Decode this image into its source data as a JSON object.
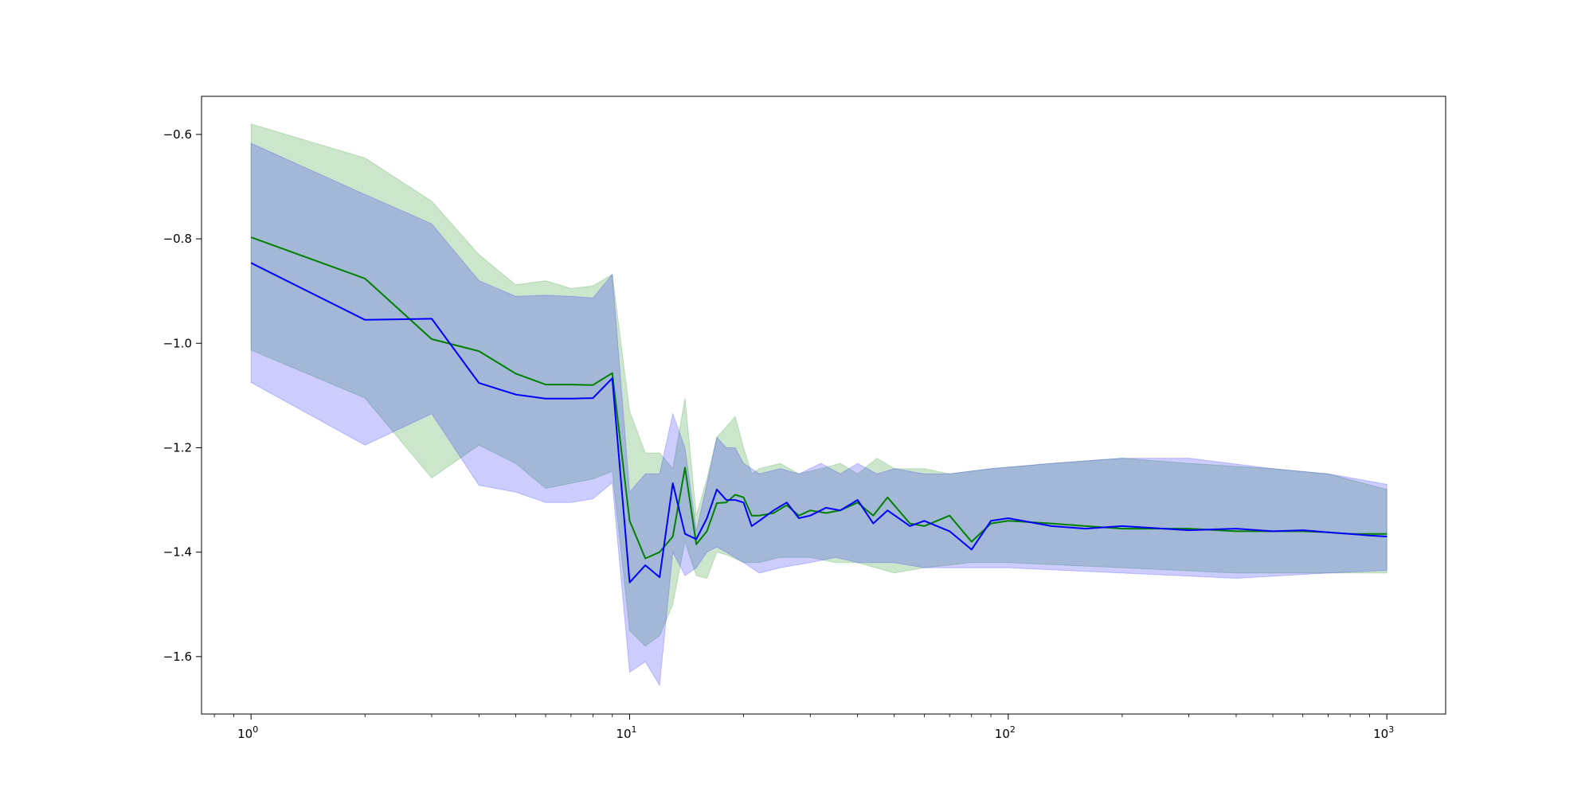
{
  "chart_data": {
    "type": "line",
    "title": "",
    "xlabel": "",
    "ylabel": "",
    "xscale": "log",
    "xlim": [
      0.74,
      1430
    ],
    "ylim": [
      -1.71,
      -0.527
    ],
    "grid": false,
    "legend": "none",
    "x_ticks": [
      {
        "value": 1,
        "base": "10",
        "exp": "0"
      },
      {
        "value": 10,
        "base": "10",
        "exp": "1"
      },
      {
        "value": 100,
        "base": "10",
        "exp": "2"
      },
      {
        "value": 1000,
        "base": "10",
        "exp": "3"
      }
    ],
    "y_ticks": [
      {
        "value": -0.6,
        "label": "−0.6"
      },
      {
        "value": -0.8,
        "label": "−0.8"
      },
      {
        "value": -1.0,
        "label": "−1.0"
      },
      {
        "value": -1.2,
        "label": "−1.2"
      },
      {
        "value": -1.4,
        "label": "−1.4"
      },
      {
        "value": -1.6,
        "label": "−1.6"
      }
    ],
    "series": [
      {
        "color": "#008000",
        "band_color": "#008000",
        "band_opacity": 0.2,
        "points": [
          [
            1,
            -0.797
          ],
          [
            2,
            -0.876
          ],
          [
            3,
            -0.992
          ],
          [
            4,
            -1.015
          ],
          [
            5,
            -1.058
          ],
          [
            6,
            -1.079
          ],
          [
            7,
            -1.079
          ],
          [
            8,
            -1.08
          ],
          [
            9,
            -1.057
          ],
          [
            10,
            -1.34
          ],
          [
            11,
            -1.412
          ],
          [
            12,
            -1.4
          ],
          [
            13,
            -1.37
          ],
          [
            14,
            -1.238
          ],
          [
            15,
            -1.385
          ],
          [
            16,
            -1.36
          ],
          [
            17,
            -1.306
          ],
          [
            18,
            -1.305
          ],
          [
            19,
            -1.29
          ],
          [
            20,
            -1.295
          ],
          [
            21,
            -1.33
          ],
          [
            22,
            -1.33
          ],
          [
            24,
            -1.325
          ],
          [
            26,
            -1.31
          ],
          [
            28,
            -1.33
          ],
          [
            30,
            -1.32
          ],
          [
            33,
            -1.325
          ],
          [
            36,
            -1.32
          ],
          [
            40,
            -1.305
          ],
          [
            44,
            -1.33
          ],
          [
            48,
            -1.295
          ],
          [
            55,
            -1.345
          ],
          [
            60,
            -1.35
          ],
          [
            70,
            -1.33
          ],
          [
            80,
            -1.38
          ],
          [
            90,
            -1.345
          ],
          [
            100,
            -1.34
          ],
          [
            130,
            -1.345
          ],
          [
            160,
            -1.35
          ],
          [
            200,
            -1.355
          ],
          [
            300,
            -1.355
          ],
          [
            400,
            -1.36
          ],
          [
            500,
            -1.36
          ],
          [
            600,
            -1.36
          ],
          [
            700,
            -1.362
          ],
          [
            800,
            -1.365
          ],
          [
            900,
            -1.365
          ],
          [
            1000,
            -1.365
          ]
        ],
        "upper": [
          [
            1,
            -0.58
          ],
          [
            2,
            -0.645
          ],
          [
            3,
            -0.728
          ],
          [
            4,
            -0.83
          ],
          [
            5,
            -0.888
          ],
          [
            6,
            -0.88
          ],
          [
            7,
            -0.895
          ],
          [
            8,
            -0.89
          ],
          [
            9,
            -0.868
          ],
          [
            10,
            -1.13
          ],
          [
            11,
            -1.21
          ],
          [
            12,
            -1.21
          ],
          [
            13,
            -1.24
          ],
          [
            14,
            -1.105
          ],
          [
            15,
            -1.33
          ],
          [
            16,
            -1.26
          ],
          [
            17,
            -1.18
          ],
          [
            18,
            -1.16
          ],
          [
            19,
            -1.14
          ],
          [
            20,
            -1.2
          ],
          [
            21,
            -1.25
          ],
          [
            22,
            -1.24
          ],
          [
            25,
            -1.23
          ],
          [
            28,
            -1.25
          ],
          [
            32,
            -1.24
          ],
          [
            36,
            -1.23
          ],
          [
            40,
            -1.25
          ],
          [
            45,
            -1.22
          ],
          [
            50,
            -1.24
          ],
          [
            60,
            -1.24
          ],
          [
            70,
            -1.25
          ],
          [
            90,
            -1.24
          ],
          [
            130,
            -1.23
          ],
          [
            200,
            -1.22
          ],
          [
            300,
            -1.23
          ],
          [
            500,
            -1.24
          ],
          [
            700,
            -1.25
          ],
          [
            1000,
            -1.28
          ]
        ],
        "lower": [
          [
            1,
            -1.013
          ],
          [
            2,
            -1.105
          ],
          [
            3,
            -1.258
          ],
          [
            4,
            -1.195
          ],
          [
            5,
            -1.23
          ],
          [
            6,
            -1.278
          ],
          [
            7,
            -1.268
          ],
          [
            8,
            -1.26
          ],
          [
            9,
            -1.245
          ],
          [
            10,
            -1.55
          ],
          [
            11,
            -1.58
          ],
          [
            12,
            -1.56
          ],
          [
            13,
            -1.5
          ],
          [
            14,
            -1.38
          ],
          [
            15,
            -1.445
          ],
          [
            16,
            -1.45
          ],
          [
            17,
            -1.4
          ],
          [
            18,
            -1.405
          ],
          [
            20,
            -1.42
          ],
          [
            22,
            -1.42
          ],
          [
            25,
            -1.41
          ],
          [
            30,
            -1.41
          ],
          [
            35,
            -1.42
          ],
          [
            40,
            -1.42
          ],
          [
            50,
            -1.44
          ],
          [
            60,
            -1.43
          ],
          [
            80,
            -1.42
          ],
          [
            100,
            -1.42
          ],
          [
            200,
            -1.43
          ],
          [
            400,
            -1.44
          ],
          [
            700,
            -1.44
          ],
          [
            1000,
            -1.44
          ]
        ]
      },
      {
        "color": "#0000ff",
        "band_color": "#0000ff",
        "band_opacity": 0.2,
        "points": [
          [
            1,
            -0.846
          ],
          [
            2,
            -0.955
          ],
          [
            3,
            -0.953
          ],
          [
            4,
            -1.076
          ],
          [
            5,
            -1.098
          ],
          [
            6,
            -1.106
          ],
          [
            7,
            -1.106
          ],
          [
            8,
            -1.105
          ],
          [
            9,
            -1.067
          ],
          [
            10,
            -1.458
          ],
          [
            11,
            -1.425
          ],
          [
            12,
            -1.448
          ],
          [
            13,
            -1.268
          ],
          [
            14,
            -1.365
          ],
          [
            15,
            -1.375
          ],
          [
            16,
            -1.335
          ],
          [
            17,
            -1.28
          ],
          [
            18,
            -1.3
          ],
          [
            19,
            -1.3
          ],
          [
            20,
            -1.305
          ],
          [
            21,
            -1.35
          ],
          [
            22,
            -1.34
          ],
          [
            24,
            -1.32
          ],
          [
            26,
            -1.305
          ],
          [
            28,
            -1.335
          ],
          [
            30,
            -1.33
          ],
          [
            33,
            -1.315
          ],
          [
            36,
            -1.32
          ],
          [
            40,
            -1.3
          ],
          [
            44,
            -1.345
          ],
          [
            48,
            -1.32
          ],
          [
            55,
            -1.35
          ],
          [
            60,
            -1.34
          ],
          [
            70,
            -1.36
          ],
          [
            80,
            -1.395
          ],
          [
            90,
            -1.34
          ],
          [
            100,
            -1.335
          ],
          [
            130,
            -1.35
          ],
          [
            160,
            -1.355
          ],
          [
            200,
            -1.35
          ],
          [
            300,
            -1.358
          ],
          [
            400,
            -1.355
          ],
          [
            500,
            -1.36
          ],
          [
            600,
            -1.358
          ],
          [
            700,
            -1.362
          ],
          [
            800,
            -1.365
          ],
          [
            900,
            -1.368
          ],
          [
            1000,
            -1.37
          ]
        ],
        "upper": [
          [
            1,
            -0.617
          ],
          [
            2,
            -0.715
          ],
          [
            3,
            -0.771
          ],
          [
            4,
            -0.88
          ],
          [
            5,
            -0.91
          ],
          [
            6,
            -0.908
          ],
          [
            7,
            -0.91
          ],
          [
            8,
            -0.913
          ],
          [
            9,
            -0.868
          ],
          [
            10,
            -1.285
          ],
          [
            11,
            -1.25
          ],
          [
            12,
            -1.25
          ],
          [
            13,
            -1.135
          ],
          [
            14,
            -1.2
          ],
          [
            15,
            -1.36
          ],
          [
            16,
            -1.27
          ],
          [
            17,
            -1.18
          ],
          [
            18,
            -1.2
          ],
          [
            19,
            -1.2
          ],
          [
            20,
            -1.23
          ],
          [
            22,
            -1.25
          ],
          [
            25,
            -1.24
          ],
          [
            28,
            -1.25
          ],
          [
            32,
            -1.23
          ],
          [
            36,
            -1.25
          ],
          [
            40,
            -1.23
          ],
          [
            45,
            -1.25
          ],
          [
            50,
            -1.24
          ],
          [
            60,
            -1.25
          ],
          [
            70,
            -1.25
          ],
          [
            90,
            -1.24
          ],
          [
            130,
            -1.23
          ],
          [
            200,
            -1.22
          ],
          [
            300,
            -1.22
          ],
          [
            500,
            -1.24
          ],
          [
            700,
            -1.25
          ],
          [
            1000,
            -1.27
          ]
        ],
        "lower": [
          [
            1,
            -1.075
          ],
          [
            2,
            -1.195
          ],
          [
            3,
            -1.135
          ],
          [
            4,
            -1.272
          ],
          [
            5,
            -1.285
          ],
          [
            6,
            -1.305
          ],
          [
            7,
            -1.305
          ],
          [
            8,
            -1.298
          ],
          [
            9,
            -1.267
          ],
          [
            10,
            -1.63
          ],
          [
            11,
            -1.61
          ],
          [
            12,
            -1.655
          ],
          [
            13,
            -1.4
          ],
          [
            14,
            -1.445
          ],
          [
            15,
            -1.43
          ],
          [
            16,
            -1.4
          ],
          [
            17,
            -1.39
          ],
          [
            18,
            -1.4
          ],
          [
            20,
            -1.42
          ],
          [
            22,
            -1.44
          ],
          [
            25,
            -1.43
          ],
          [
            30,
            -1.42
          ],
          [
            35,
            -1.41
          ],
          [
            40,
            -1.42
          ],
          [
            50,
            -1.42
          ],
          [
            60,
            -1.43
          ],
          [
            80,
            -1.43
          ],
          [
            100,
            -1.43
          ],
          [
            200,
            -1.44
          ],
          [
            400,
            -1.45
          ],
          [
            700,
            -1.44
          ],
          [
            1000,
            -1.435
          ]
        ]
      }
    ]
  }
}
